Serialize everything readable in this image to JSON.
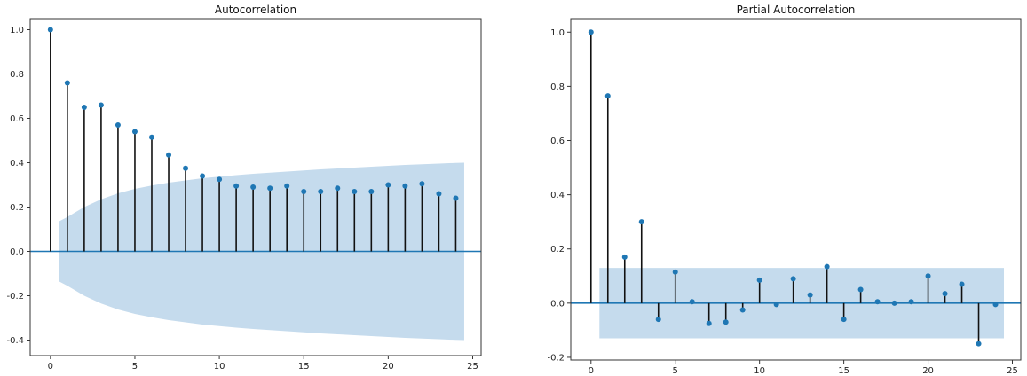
{
  "chart_data": [
    {
      "type": "stem",
      "title": "Autocorrelation",
      "xlabel": "",
      "ylabel": "",
      "xlim": [
        -1.2,
        25.5
      ],
      "ylim": [
        -0.47,
        1.05
      ],
      "xticks": [
        0,
        5,
        10,
        15,
        20,
        25
      ],
      "yticks": [
        -0.4,
        -0.2,
        0.0,
        0.2,
        0.4,
        0.6,
        0.8,
        1.0
      ],
      "grid": false,
      "lags": [
        0,
        1,
        2,
        3,
        4,
        5,
        6,
        7,
        8,
        9,
        10,
        11,
        12,
        13,
        14,
        15,
        16,
        17,
        18,
        19,
        20,
        21,
        22,
        23,
        24
      ],
      "values": [
        1.0,
        0.76,
        0.65,
        0.66,
        0.57,
        0.54,
        0.515,
        0.435,
        0.375,
        0.34,
        0.325,
        0.295,
        0.29,
        0.285,
        0.295,
        0.27,
        0.27,
        0.285,
        0.27,
        0.27,
        0.3,
        0.295,
        0.305,
        0.26,
        0.24
      ],
      "confidence_band": {
        "lags": [
          0.5,
          1,
          2,
          3,
          4,
          5,
          6,
          7,
          8,
          9,
          10,
          11,
          12,
          13,
          14,
          15,
          16,
          17,
          18,
          19,
          20,
          21,
          22,
          23,
          24,
          24.5
        ],
        "upper": [
          0.135,
          0.155,
          0.2,
          0.235,
          0.262,
          0.282,
          0.297,
          0.31,
          0.32,
          0.33,
          0.337,
          0.344,
          0.35,
          0.355,
          0.36,
          0.365,
          0.37,
          0.374,
          0.378,
          0.382,
          0.386,
          0.39,
          0.393,
          0.396,
          0.399,
          0.4
        ]
      },
      "colors": {
        "marker": "#1f77b4",
        "stem": "#111111",
        "band": "#c5dbed",
        "baseline": "#1f77b4"
      }
    },
    {
      "type": "stem",
      "title": "Partial Autocorrelation",
      "xlabel": "",
      "ylabel": "",
      "xlim": [
        -1.2,
        25.5
      ],
      "ylim": [
        -0.21,
        1.05
      ],
      "xticks": [
        0,
        5,
        10,
        15,
        20,
        25
      ],
      "yticks": [
        -0.2,
        0.0,
        0.2,
        0.4,
        0.6,
        0.8,
        1.0
      ],
      "grid": false,
      "lags": [
        0,
        1,
        2,
        3,
        4,
        5,
        6,
        7,
        8,
        9,
        10,
        11,
        12,
        13,
        14,
        15,
        16,
        17,
        18,
        19,
        20,
        21,
        22,
        23,
        24
      ],
      "values": [
        1.0,
        0.765,
        0.17,
        0.3,
        -0.06,
        0.115,
        0.005,
        -0.075,
        -0.07,
        -0.025,
        0.085,
        -0.005,
        0.09,
        0.03,
        0.135,
        -0.06,
        0.05,
        0.005,
        0.0,
        0.005,
        0.1,
        0.035,
        0.07,
        -0.15,
        -0.005
      ],
      "confidence_band": {
        "lags": [
          0.5,
          24.5
        ],
        "upper": [
          0.13,
          0.13
        ]
      },
      "colors": {
        "marker": "#1f77b4",
        "stem": "#111111",
        "band": "#c5dbed",
        "baseline": "#1f77b4"
      }
    }
  ]
}
